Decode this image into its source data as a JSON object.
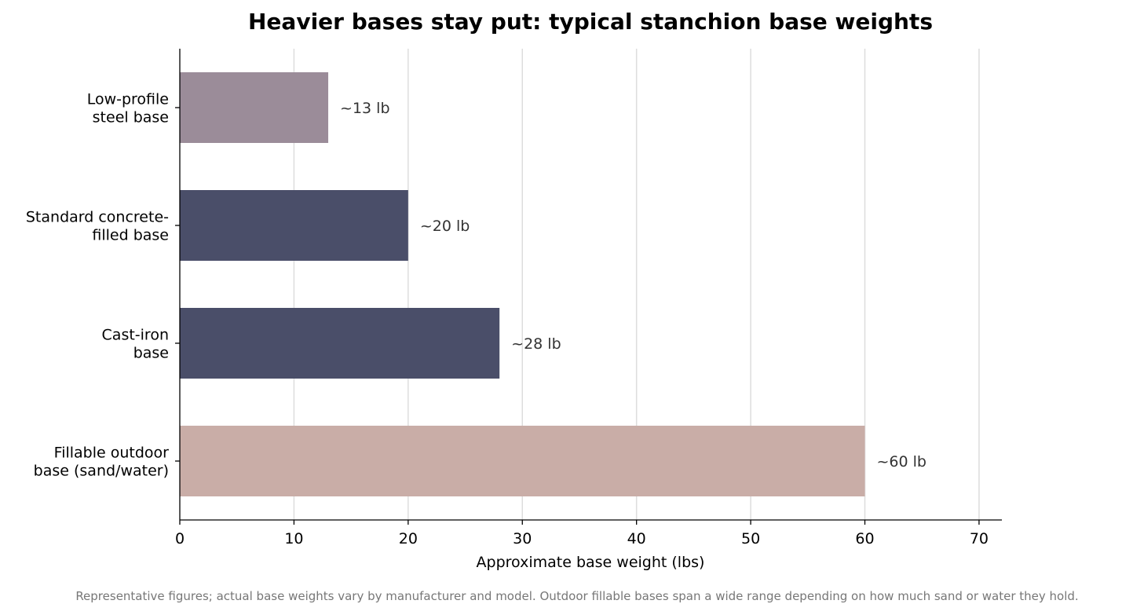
{
  "chart_data": {
    "type": "bar",
    "orientation": "horizontal",
    "title": "Heavier bases stay put: typical stanchion base weights",
    "xlabel": "Approximate base weight (lbs)",
    "ylabel": "",
    "xlim": [
      0,
      72
    ],
    "xticks": [
      0,
      10,
      20,
      30,
      40,
      50,
      60,
      70
    ],
    "grid": "vertical",
    "categories": [
      [
        "Low-profile",
        "steel base"
      ],
      [
        "Standard concrete-",
        "filled base"
      ],
      [
        "Cast-iron",
        "base"
      ],
      [
        "Fillable outdoor",
        "base (sand/water)"
      ]
    ],
    "values": [
      13,
      20,
      28,
      60
    ],
    "data_labels": [
      "~13 lb",
      "~20 lb",
      "~28 lb",
      "~60 lb"
    ],
    "colors": [
      "#9b8c99",
      "#4a4e69",
      "#4a4e69",
      "#c9ada7"
    ]
  },
  "footnote": "Representative figures; actual base weights vary by manufacturer and model. Outdoor fillable bases span a wide range depending on how much sand or water they hold."
}
